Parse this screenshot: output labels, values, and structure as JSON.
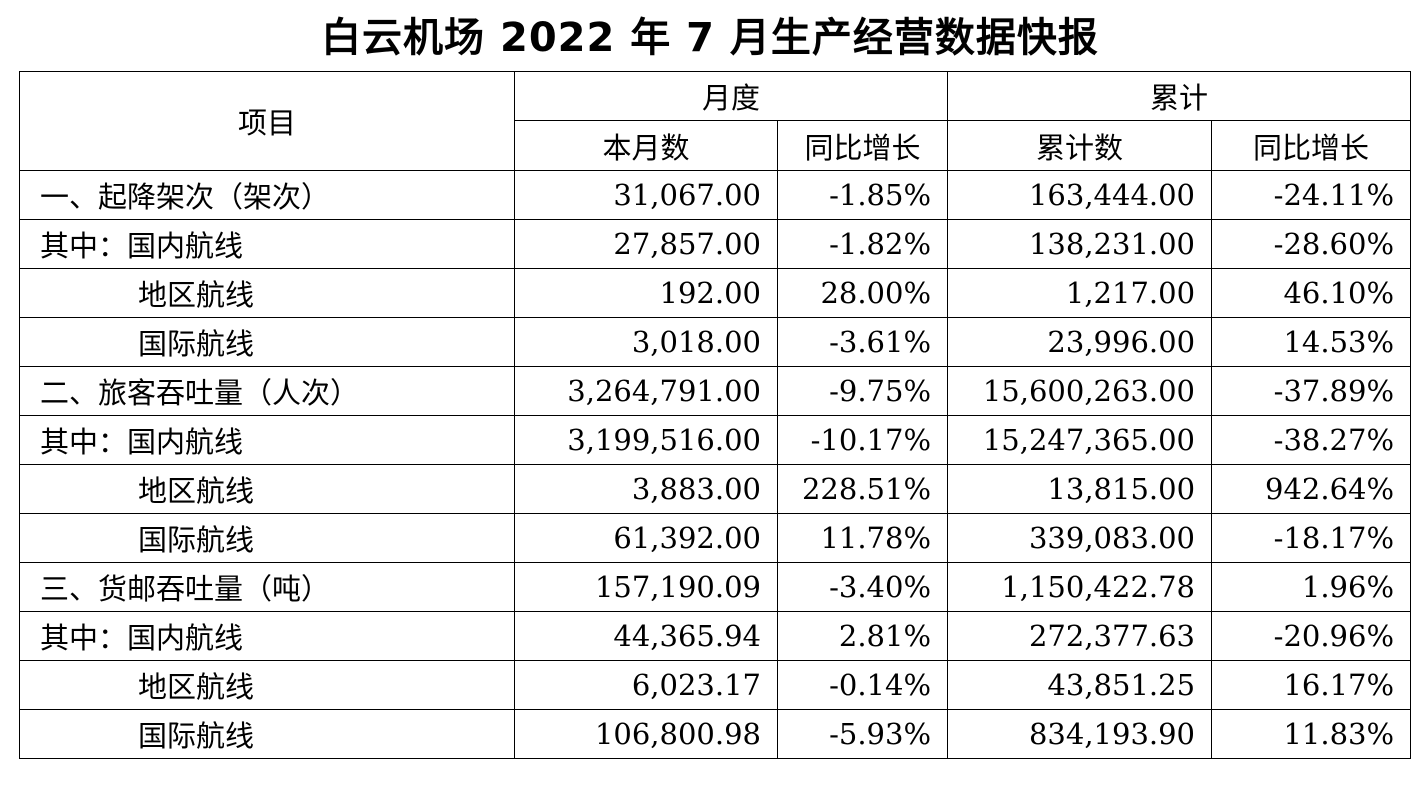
{
  "title": "白云机场 2022 年 7 月生产经营数据快报",
  "headers": {
    "item": "项目",
    "month_group": "月度",
    "cumulative_group": "累计",
    "month_value": "本月数",
    "month_yoy": "同比增长",
    "cumulative_value": "累计数",
    "cumulative_yoy": "同比增长"
  },
  "rows": [
    {
      "label": "一、起降架次（架次）",
      "month": "31,067.00",
      "month_yoy": "-1.85%",
      "cum": "163,444.00",
      "cum_yoy": "-24.11%",
      "indent": false
    },
    {
      "label": "其中：国内航线",
      "month": "27,857.00",
      "month_yoy": "-1.82%",
      "cum": "138,231.00",
      "cum_yoy": "-28.60%",
      "indent": false
    },
    {
      "label": "地区航线",
      "month": "192.00",
      "month_yoy": "28.00%",
      "cum": "1,217.00",
      "cum_yoy": "46.10%",
      "indent": true
    },
    {
      "label": "国际航线",
      "month": "3,018.00",
      "month_yoy": "-3.61%",
      "cum": "23,996.00",
      "cum_yoy": "14.53%",
      "indent": true
    },
    {
      "label": "二、旅客吞吐量（人次）",
      "month": "3,264,791.00",
      "month_yoy": "-9.75%",
      "cum": "15,600,263.00",
      "cum_yoy": "-37.89%",
      "indent": false
    },
    {
      "label": "其中：国内航线",
      "month": "3,199,516.00",
      "month_yoy": "-10.17%",
      "cum": "15,247,365.00",
      "cum_yoy": "-38.27%",
      "indent": false
    },
    {
      "label": "地区航线",
      "month": "3,883.00",
      "month_yoy": "228.51%",
      "cum": "13,815.00",
      "cum_yoy": "942.64%",
      "indent": true
    },
    {
      "label": "国际航线",
      "month": "61,392.00",
      "month_yoy": "11.78%",
      "cum": "339,083.00",
      "cum_yoy": "-18.17%",
      "indent": true
    },
    {
      "label": "三、货邮吞吐量（吨）",
      "month": "157,190.09",
      "month_yoy": "-3.40%",
      "cum": "1,150,422.78",
      "cum_yoy": "1.96%",
      "indent": false
    },
    {
      "label": "其中：国内航线",
      "month": "44,365.94",
      "month_yoy": "2.81%",
      "cum": "272,377.63",
      "cum_yoy": "-20.96%",
      "indent": false
    },
    {
      "label": "地区航线",
      "month": "6,023.17",
      "month_yoy": "-0.14%",
      "cum": "43,851.25",
      "cum_yoy": "16.17%",
      "indent": true
    },
    {
      "label": "国际航线",
      "month": "106,800.98",
      "month_yoy": "-5.93%",
      "cum": "834,193.90",
      "cum_yoy": "11.83%",
      "indent": true
    }
  ]
}
